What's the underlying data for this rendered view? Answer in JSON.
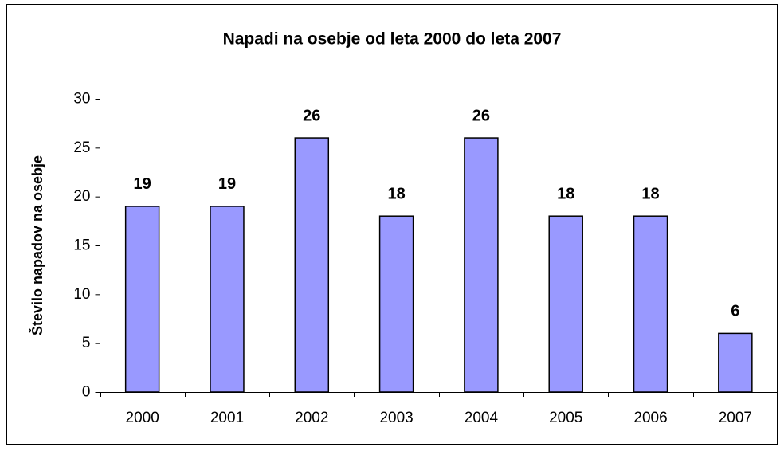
{
  "chart_data": {
    "type": "bar",
    "title": "Napadi na osebje od leta 2000 do leta 2007",
    "y_label": "Število napadov na osebje",
    "categories": [
      "2000",
      "2001",
      "2002",
      "2003",
      "2004",
      "2005",
      "2006",
      "2007"
    ],
    "values": [
      19,
      19,
      26,
      18,
      26,
      18,
      18,
      6
    ],
    "color": "#9999ff",
    "ylim": [
      0,
      30
    ],
    "yticks": [
      0,
      5,
      10,
      15,
      20,
      25,
      30
    ],
    "grid": false
  }
}
